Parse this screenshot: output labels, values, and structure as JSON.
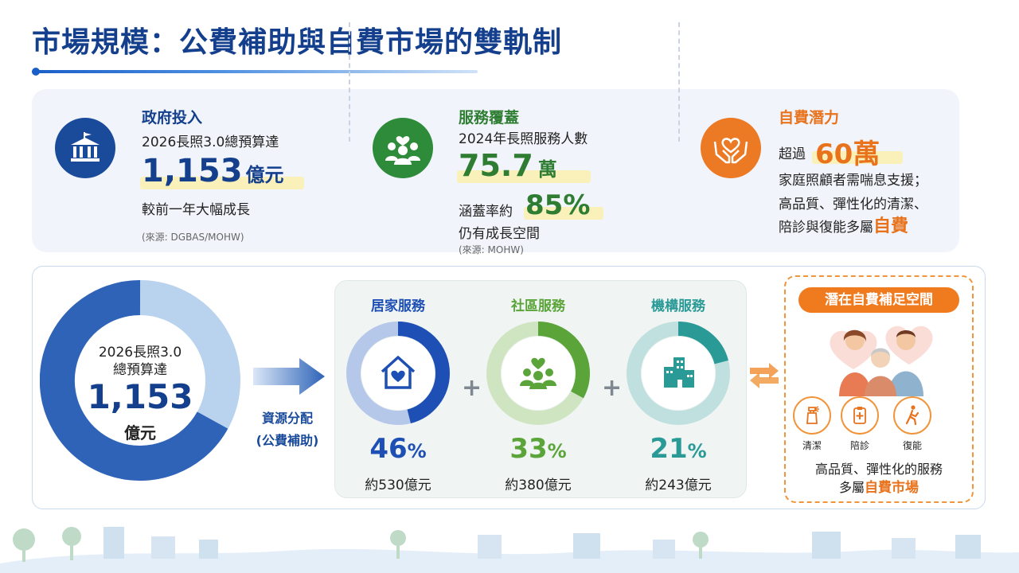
{
  "title": "市場規模：公費補助與自費市場的雙軌制",
  "top": {
    "gov": {
      "icon": "government-building-icon",
      "heading": "政府投入",
      "line1": "2026長照3.0總預算達",
      "big_value": "1,153",
      "big_unit": "億元",
      "line2": "較前一年大幅成長",
      "source": "(來源: DGBAS/MOHW)"
    },
    "coverage": {
      "icon": "people-heart-icon",
      "heading": "服務覆蓋",
      "line1": "2024年長照服務人數",
      "big_value": "75.7",
      "big_unit": "萬",
      "rate_label": "涵蓋率約",
      "rate_value": "85%",
      "line2": "仍有成長空間",
      "source": "(來源: MOHW)"
    },
    "self_pay": {
      "icon": "hands-heart-icon",
      "heading": "自費潛力",
      "prefix": "超過",
      "big_value": "60萬",
      "line1": "家庭照顧者需喘息支援；",
      "line2": "高品質、彈性化的清潔、",
      "line3_prefix": "陪診與復能多屬",
      "line3_emph": "自費"
    }
  },
  "budget": {
    "line1": "2026長照3.0",
    "line2": "總預算達",
    "value": "1,153",
    "unit": "億元",
    "arrow_line1": "資源分配",
    "arrow_line2": "(公費補助)"
  },
  "services": [
    {
      "title": "居家服務",
      "pct_num": "46",
      "pct_sign": "%",
      "amount": "約530億元",
      "share": 0.46,
      "color": "#1e4fb4",
      "track": "#b6c8e9",
      "icon": "house-heart-icon"
    },
    {
      "title": "社區服務",
      "pct_num": "33",
      "pct_sign": "%",
      "amount": "約380億元",
      "share": 0.33,
      "color": "#5aa43a",
      "track": "#cfe5c2",
      "icon": "community-people-icon"
    },
    {
      "title": "機構服務",
      "pct_num": "21",
      "pct_sign": "%",
      "amount": "約243億元",
      "share": 0.21,
      "color": "#2a9a97",
      "track": "#bfe0de",
      "icon": "institution-building-icon"
    }
  ],
  "plus_sign": "+",
  "latent": {
    "heading": "潛在自費補足空間",
    "items": [
      {
        "label": "清潔",
        "icon": "spray-bottle-icon"
      },
      {
        "label": "陪診",
        "icon": "clipboard-medical-icon"
      },
      {
        "label": "復能",
        "icon": "walking-person-icon"
      }
    ],
    "line1": "高品質、彈性化的服務",
    "line2_prefix": "多屬",
    "line2_emph": "自費市場"
  },
  "colors": {
    "navy": "#143f8c",
    "green": "#2e7d32",
    "orange": "#e8731c"
  }
}
